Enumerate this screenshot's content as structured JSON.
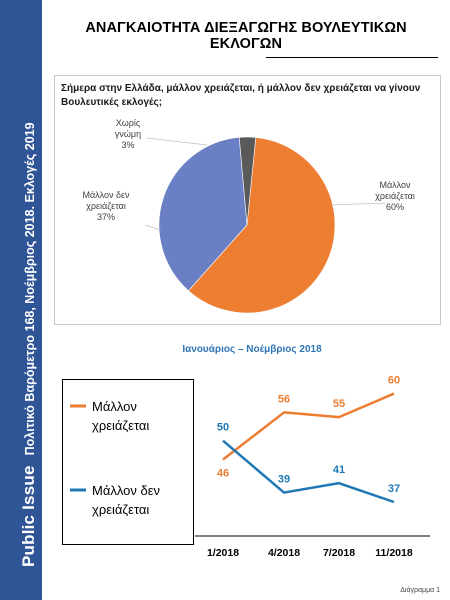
{
  "sidebar": {
    "brand": "Public Issue",
    "subtitle": "Πολιτικό Βαρόμετρο 168, Νοέμβριος 2018. Εκλογές 2019"
  },
  "page_title": "ΑΝΑΓΚΑΙΟΤΗΤΑ ΔΙΕΞΑΓΩΓΗΣ ΒΟΥΛΕΥΤΙΚΩΝ ΕΚΛΟΓΩΝ",
  "question": "Σήμερα στην Ελλάδα, μάλλον χρειάζεται, ή μάλλον δεν χρειάζεται να γίνουν Βουλευτικές εκλογές;",
  "trend_period": "Ιανουάριος – Νοέμβριος 2018",
  "footnote": "Διάγραμμα 1",
  "chart_data": [
    {
      "type": "pie",
      "slices": [
        {
          "label": "Μάλλον χρειάζεται",
          "value": 60,
          "value_label": "60%",
          "color": "#ed7d31"
        },
        {
          "label": "Μάλλον δεν χρειάζεται",
          "value": 37,
          "value_label": "37%",
          "color": "#6b7fc4"
        },
        {
          "label": "Χωρίς γνώμη",
          "value": 3,
          "value_label": "3%",
          "color": "#5a5a5a"
        }
      ]
    },
    {
      "type": "line",
      "categories": [
        "1/2018",
        "4/2018",
        "7/2018",
        "11/2018"
      ],
      "ylim": [
        30,
        65
      ],
      "grid": false,
      "legend": "left",
      "series": [
        {
          "name": "Μάλλον χρειάζεται",
          "values": [
            46,
            56,
            55,
            60
          ],
          "color": "#ed7d31",
          "label_position": "above"
        },
        {
          "name": "Μάλλον δεν χρειάζεται",
          "values": [
            50,
            39,
            41,
            37
          ],
          "color": "#1f78b4",
          "label_position": "above"
        }
      ]
    }
  ]
}
